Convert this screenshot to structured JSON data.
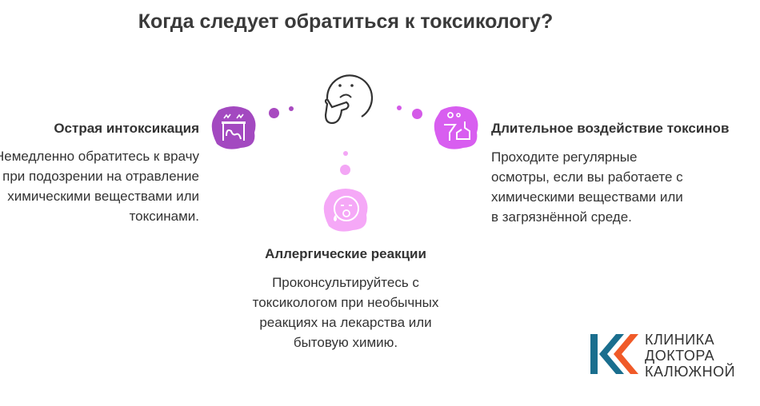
{
  "title": "Когда следует обратиться к токсикологу?",
  "items": [
    {
      "heading": "Острая интоксикация",
      "text": "Немедленно обратитесь к врачу при подозрении на отравление химическими веществами или токсинами.",
      "icon": "poisoned-person-icon",
      "color": "#a349c0"
    },
    {
      "heading": "Длительное воздействие токсинов",
      "text": "Проходите регулярные осмотры, если вы работаете с химическими веществами или в загрязнённой среде.",
      "icon": "factory-chemicals-icon",
      "color": "#d85ef0"
    },
    {
      "heading": "Аллергические реакции",
      "text": "Проконсультируйтесь с токсикологом при необычных реакциях на лекарства или бытовую химию.",
      "icon": "allergic-face-icon",
      "color": "#f5a8f7"
    }
  ],
  "center_icon": "thinking-face-icon",
  "logo": {
    "line1": "КЛИНИКА",
    "line2": "ДОКТОРА",
    "line3": "КАЛЮЖНОЙ",
    "colors": [
      "#1a6e8e",
      "#f05a28"
    ]
  }
}
